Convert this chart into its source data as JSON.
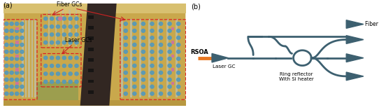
{
  "bg_color": "#ffffff",
  "panel_a_label": "(a)",
  "panel_b_label": "(b)",
  "fiber_gcs_label": "Fiber GCs",
  "laser_gcs_label": "Laser GCs",
  "rsoa_label": "RSOA",
  "laser_gc_label": "Laser GC",
  "ring_reflector_label": "Ring reflector\nWith Si heater",
  "fiber_gcs_b_label": "Fiber GCs",
  "waveguide_color": "#3d6070",
  "rsoa_color": "#e87722",
  "dashed_box_color": "#dd2222",
  "chip_bg": "#c9a84c",
  "chip_bg2": "#d4b84a",
  "dark_strip": "#2a2020",
  "dot_color": "#5599bb",
  "gray_bar": "#b8b890",
  "pink_dot": "#cc8888",
  "green_area": "#8aaa66"
}
